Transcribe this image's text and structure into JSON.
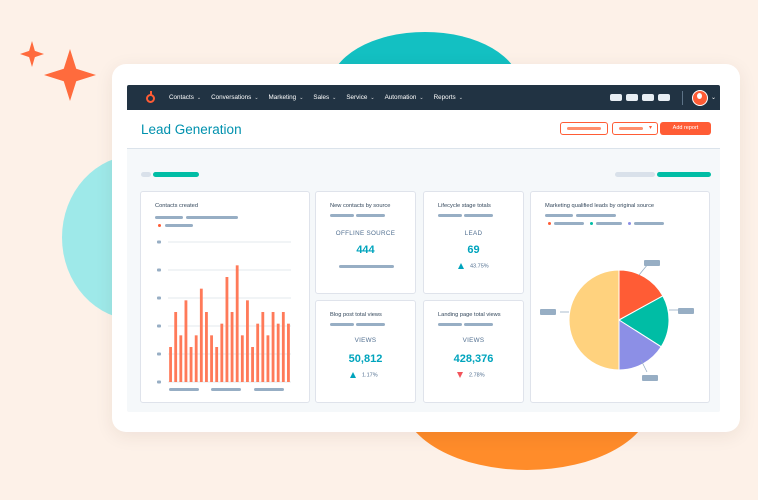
{
  "colors": {
    "accent": "#ff5c35",
    "teal": "#00a4bd",
    "nav": "#213343",
    "bar": "#ff7a59",
    "pie_orange": "#ff5c35",
    "pie_teal": "#00bda5",
    "pie_purple": "#8c8fe6",
    "pie_yellow": "#ffd27e"
  },
  "nav": {
    "logo": "hubspot-sprocket-icon",
    "items": [
      {
        "label": "Contacts"
      },
      {
        "label": "Conversations"
      },
      {
        "label": "Marketing"
      },
      {
        "label": "Sales"
      },
      {
        "label": "Service"
      },
      {
        "label": "Automation"
      },
      {
        "label": "Reports"
      }
    ]
  },
  "header": {
    "title": "Lead Generation",
    "add_report_label": "Add report"
  },
  "cards": {
    "contacts_created": {
      "title": "Contacts created"
    },
    "new_contacts": {
      "title": "New contacts by source",
      "label": "OFFLINE SOURCE",
      "value": "444"
    },
    "lifecycle": {
      "title": "Lifecycle stage totals",
      "label": "LEAD",
      "value": "69",
      "delta": "43.75%",
      "direction": "up"
    },
    "blog_views": {
      "title": "Blog post total views",
      "label": "VIEWS",
      "value": "50,812",
      "delta": "1.17%",
      "direction": "up"
    },
    "landing_views": {
      "title": "Landing page total views",
      "label": "VIEWS",
      "value": "428,376",
      "delta": "2.78%",
      "direction": "down"
    },
    "mql": {
      "title": "Marketing qualified leads by original source"
    }
  },
  "chart_data": [
    {
      "type": "bar",
      "title": "Contacts created",
      "values": [
        3,
        6,
        4,
        7,
        3,
        4,
        8,
        6,
        4,
        3,
        5,
        9,
        6,
        10,
        4,
        7,
        3,
        5,
        6,
        4,
        6,
        5,
        6,
        5
      ],
      "ylim": [
        0,
        12
      ]
    },
    {
      "type": "pie",
      "title": "Marketing qualified leads by original source",
      "values": [
        17,
        17,
        16,
        50
      ],
      "colors": [
        "#ff5c35",
        "#00bda5",
        "#8c8fe6",
        "#ffd27e"
      ]
    }
  ]
}
